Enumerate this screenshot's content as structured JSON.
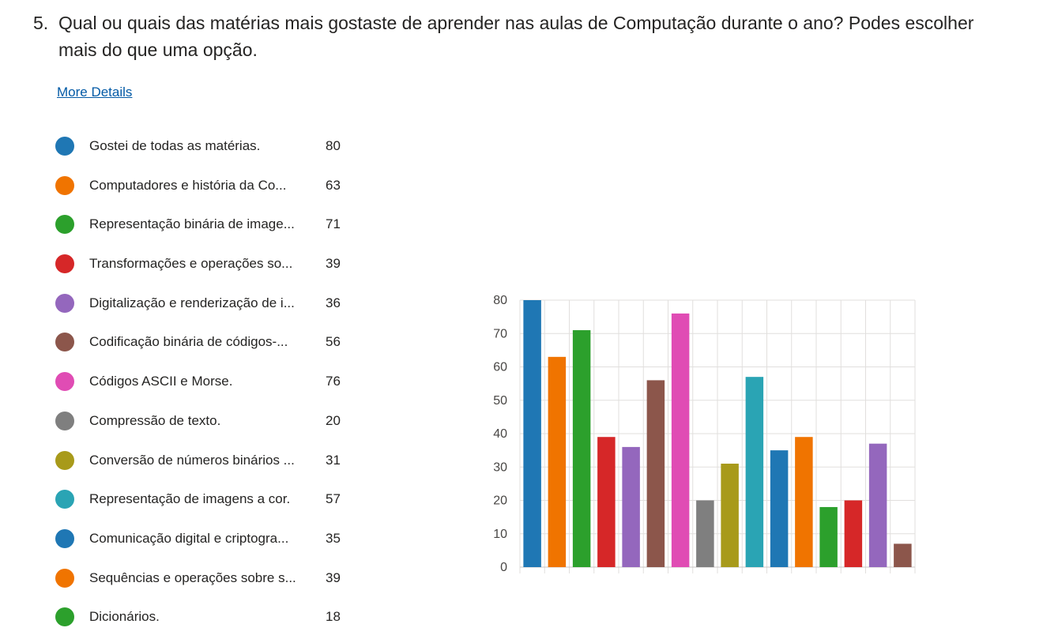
{
  "question": {
    "number": "5.",
    "text": "Qual ou quais das matérias mais gostaste de aprender nas aulas de Computação durante o ano? Podes escolher mais do que uma opção."
  },
  "more_details_label": "More Details",
  "legend": [
    {
      "label": "Gostei de todas as matérias.",
      "count": "80",
      "color": "#1f77b4"
    },
    {
      "label": "Computadores e história da Co...",
      "count": "63",
      "color": "#f07400"
    },
    {
      "label": "Representação binária de image...",
      "count": "71",
      "color": "#2ca02c"
    },
    {
      "label": "Transformações e operações so...",
      "count": "39",
      "color": "#d62728"
    },
    {
      "label": "Digitalização e renderização de i...",
      "count": "36",
      "color": "#9467bd"
    },
    {
      "label": "Codificação binária de códigos-...",
      "count": "56",
      "color": "#8c564b"
    },
    {
      "label": "Códigos ASCII e Morse.",
      "count": "76",
      "color": "#e04cb4"
    },
    {
      "label": "Compressão de texto.",
      "count": "20",
      "color": "#7f7f7f"
    },
    {
      "label": "Conversão de números binários ...",
      "count": "31",
      "color": "#a89a1a"
    },
    {
      "label": "Representação de imagens a cor.",
      "count": "57",
      "color": "#2aa4b4"
    },
    {
      "label": "Comunicação digital e criptogra...",
      "count": "35",
      "color": "#1f77b4"
    },
    {
      "label": "Sequências e operações sobre s...",
      "count": "39",
      "color": "#f07400"
    },
    {
      "label": "Dicionários.",
      "count": "18",
      "color": "#2ca02c"
    }
  ],
  "chart_data": {
    "type": "bar",
    "ylim": [
      0,
      80
    ],
    "yticks": [
      0,
      10,
      20,
      30,
      40,
      50,
      60,
      70,
      80
    ],
    "grid": true,
    "values": [
      80,
      63,
      71,
      39,
      36,
      56,
      76,
      20,
      31,
      57,
      35,
      39,
      18,
      20,
      37,
      7
    ],
    "colors": [
      "#1f77b4",
      "#f07400",
      "#2ca02c",
      "#d62728",
      "#9467bd",
      "#8c564b",
      "#e04cb4",
      "#7f7f7f",
      "#a89a1a",
      "#2aa4b4",
      "#1f77b4",
      "#f07400",
      "#2ca02c",
      "#d62728",
      "#9467bd",
      "#8c564b"
    ]
  }
}
